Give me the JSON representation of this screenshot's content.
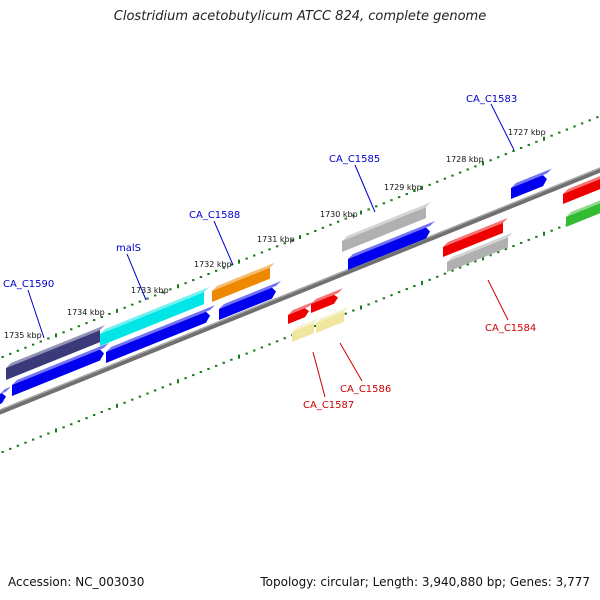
{
  "title": "Clostridium acetobutylicum ATCC 824, complete genome",
  "footer": {
    "accession": "Accession: NC_003030",
    "summary": "Topology: circular; Length: 3,940,880 bp; Genes: 3,777"
  },
  "colors": {
    "backbone": "#808080",
    "tick": "#1a7a1a",
    "forward_label": "#0000cc",
    "reverse_label": "#cc0000",
    "cds_blue": "#0000ee",
    "red": "#ee0000",
    "gray": "#b0b0b0",
    "cyan": "#00e5e5",
    "dark_purple": "#3a3a7a",
    "orange": "#ee8800",
    "pale_yellow": "#f0e6a0",
    "green": "#33bb33"
  },
  "kbp_labels": [
    "1727 kbp",
    "1728 kbp",
    "1729 kbp",
    "1730 kbp",
    "1731 kbp",
    "1732 kbp",
    "1733 kbp",
    "1734 kbp",
    "1735 kbp"
  ],
  "gene_labels_top": [
    "CA_C1583",
    "CA_C1585",
    "CA_C1588",
    "malS",
    "CA_C1590"
  ],
  "gene_labels_bottom": [
    "CA_C1584",
    "CA_C1586",
    "CA_C1587"
  ]
}
